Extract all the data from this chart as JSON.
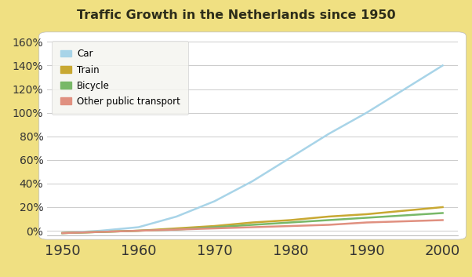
{
  "title": "Traffic Growth in the Netherlands since 1950",
  "title_color": "#2d2d1a",
  "title_bg_color": "#4a7a3a",
  "background_color": "#f0e082",
  "plot_bg_color": "#ffffff",
  "x_values": [
    1950,
    1955,
    1960,
    1965,
    1970,
    1975,
    1980,
    1985,
    1990,
    1995,
    2000
  ],
  "car": [
    -0.02,
    0.0,
    0.03,
    0.12,
    0.25,
    0.42,
    0.62,
    0.82,
    1.0,
    1.2,
    1.4
  ],
  "train": [
    -0.02,
    -0.01,
    0.0,
    0.02,
    0.04,
    0.07,
    0.09,
    0.12,
    0.14,
    0.17,
    0.2
  ],
  "bicycle": [
    -0.02,
    -0.01,
    0.0,
    0.01,
    0.03,
    0.05,
    0.07,
    0.09,
    0.11,
    0.13,
    0.15
  ],
  "other": [
    -0.02,
    -0.01,
    0.0,
    0.01,
    0.02,
    0.03,
    0.04,
    0.05,
    0.07,
    0.08,
    0.09
  ],
  "car_color": "#a8d4e8",
  "train_color": "#c8a832",
  "bicycle_color": "#78b868",
  "other_color": "#e09080",
  "line_width": 1.8,
  "ylim": [
    -0.04,
    1.65
  ],
  "yticks": [
    0.0,
    0.2,
    0.4,
    0.6,
    0.8,
    1.0,
    1.2,
    1.4,
    1.6
  ],
  "ytick_labels": [
    "0%",
    "20%",
    "40%",
    "60%",
    "80%",
    "100%",
    "120%",
    "140%",
    "160%"
  ],
  "xticks": [
    1950,
    1960,
    1970,
    1980,
    1990,
    2000
  ],
  "legend_labels": [
    "Car",
    "Train",
    "Bicycle",
    "Other public transport"
  ],
  "tick_fontsize": 10,
  "xtick_fontsize": 13
}
